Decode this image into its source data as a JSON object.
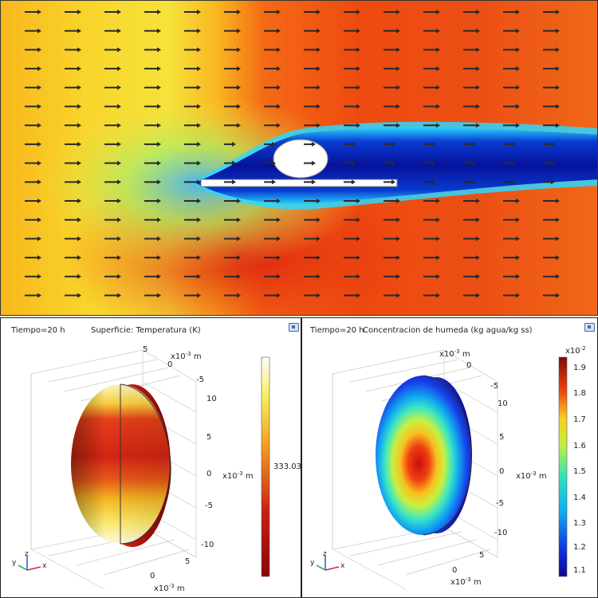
{
  "left": {
    "time_label": "Tiempo=20 h",
    "title": "Superficie: Temperatura (K)",
    "colorbar_value": "333.03",
    "axis_unit_top": "m",
    "axis_unit_right": "m",
    "axis_unit_bottom": "m",
    "axis_exp": "-3",
    "axis_base": "x10",
    "tick_top": [
      "5",
      "0",
      "-5"
    ],
    "tick_right": [
      "10",
      "5",
      "0",
      "-5",
      "-10"
    ],
    "tick_bottom": [
      "0",
      "5"
    ],
    "triad": {
      "z": "z",
      "y": "y",
      "x": "x"
    }
  },
  "right": {
    "time_label": "Tiempo=20 h",
    "title": "Concentracion de humeda (kg agua/kg ss)",
    "colorbar_exponent_base": "x10",
    "colorbar_exponent": "-2",
    "colorbar_ticks": [
      "1.9",
      "1.8",
      "1.7",
      "1.6",
      "1.5",
      "1.4",
      "1.3",
      "1.2",
      "1.1"
    ],
    "axis_unit_top": "m",
    "axis_unit_right": "m",
    "axis_unit_bottom": "m",
    "axis_exp": "-3",
    "axis_base": "x10",
    "tick_top": [
      "0",
      "-5"
    ],
    "tick_right": [
      "10",
      "5",
      "0",
      "-5",
      "-10"
    ],
    "tick_bottom": [
      "0",
      "5"
    ],
    "triad": {
      "z": "z",
      "y": "y",
      "x": "x"
    }
  },
  "colors": {
    "warm_left": "#f7c531",
    "hot": "#e02010",
    "wake": "#0a1fa0"
  }
}
